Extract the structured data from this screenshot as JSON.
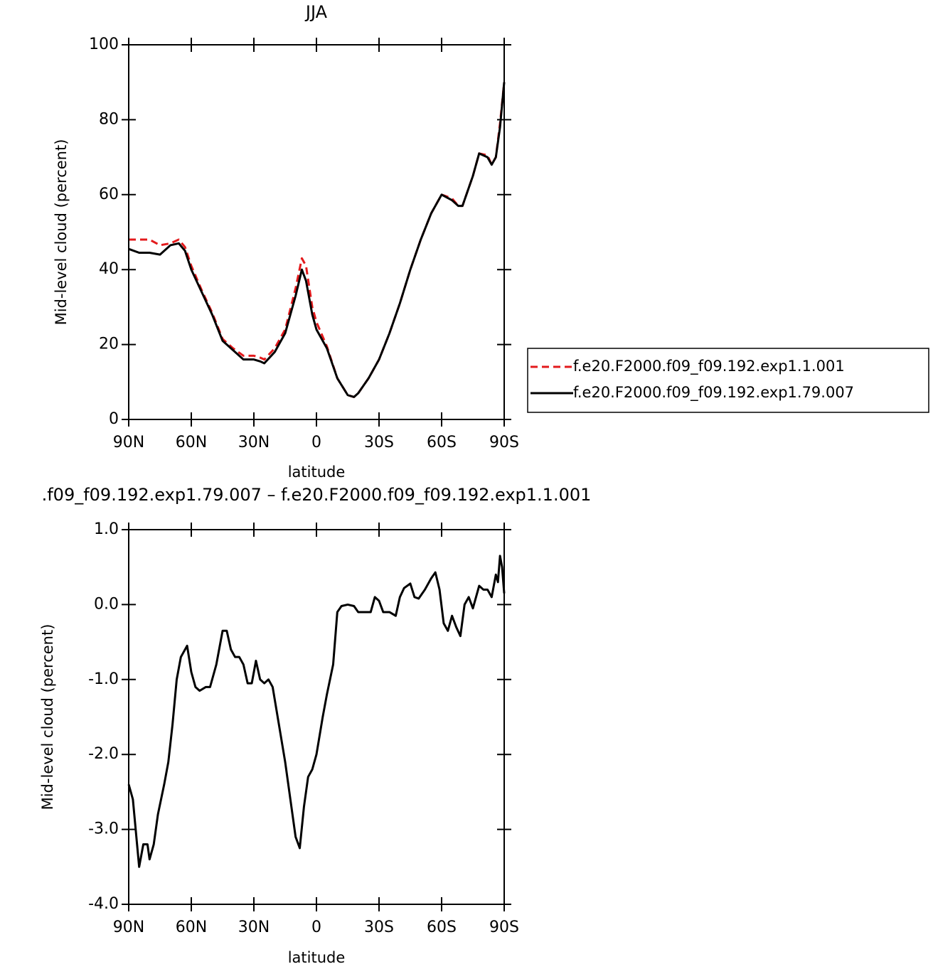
{
  "chart_data": [
    {
      "type": "line",
      "title": "JJA",
      "x_label": "latitude",
      "y_label": "Mid-level cloud (percent)",
      "x": [
        90,
        85,
        80,
        75,
        70,
        66,
        63,
        60,
        55,
        50,
        45,
        40,
        35,
        30,
        27,
        25,
        20,
        15,
        10,
        7,
        5,
        2,
        0,
        -5,
        -10,
        -15,
        -18,
        -20,
        -25,
        -30,
        -35,
        -40,
        -45,
        -50,
        -55,
        -60,
        -65,
        -68,
        -70,
        -75,
        -78,
        -82,
        -84,
        -86,
        -88,
        -90
      ],
      "series": [
        {
          "name": "f.e20.F2000.f09_f09.192.exp1.1.001",
          "color": "#e31a1c",
          "line_style": "dashed",
          "values": [
            48,
            48,
            48,
            46.5,
            47,
            48,
            46,
            41,
            34.5,
            28.5,
            21.5,
            19,
            17,
            17,
            16.5,
            16,
            19,
            24,
            35,
            43,
            41,
            30,
            26,
            19.5,
            11,
            6.5,
            6,
            7,
            11,
            16,
            23,
            31,
            40,
            48,
            55,
            60,
            59,
            57,
            57,
            65,
            71,
            70.5,
            68,
            70,
            79,
            90
          ]
        },
        {
          "name": "f.e20.F2000.f09_f09.192.exp1.79.007",
          "color": "#000000",
          "line_style": "solid",
          "values": [
            45.5,
            44.5,
            44.5,
            44,
            46.5,
            47,
            45,
            40,
            34,
            28,
            21,
            18.5,
            16,
            16,
            15.5,
            15,
            18,
            23,
            33,
            40,
            37,
            28,
            24,
            19,
            11,
            6.5,
            6,
            7,
            11,
            16,
            23,
            31,
            40,
            48,
            55,
            60,
            58.5,
            57,
            57,
            65,
            71,
            70,
            68,
            70,
            78,
            90
          ]
        }
      ],
      "xlim": [
        90,
        -90
      ],
      "xticks": [
        {
          "value": 90,
          "label": "90N"
        },
        {
          "value": 60,
          "label": "60N"
        },
        {
          "value": 30,
          "label": "30N"
        },
        0,
        {
          "value": -30,
          "label": "30S"
        },
        {
          "value": -60,
          "label": "60S"
        },
        {
          "value": -90,
          "label": "90S"
        }
      ],
      "ylim": [
        0,
        100
      ],
      "yticks": [
        0,
        20,
        40,
        60,
        80,
        100
      ],
      "legend": "right"
    },
    {
      "type": "line",
      "title": ".f09_f09.192.exp1.79.007 – f.e20.F2000.f09_f09.192.exp1.1.001",
      "x_label": "latitude",
      "y_label": "Mid-level cloud (percent)",
      "x": [
        90,
        88,
        86,
        85,
        83,
        81,
        80,
        78,
        76,
        73,
        71,
        69,
        67,
        65,
        62,
        60,
        58,
        56,
        53,
        51,
        48,
        45,
        43,
        41,
        39,
        37,
        35,
        33,
        31,
        29,
        27,
        25,
        23,
        21,
        18,
        15,
        12,
        10,
        8,
        6,
        4,
        2,
        0,
        -3,
        -5,
        -8,
        -10,
        -12,
        -15,
        -18,
        -20,
        -23,
        -26,
        -28,
        -30,
        -32,
        -35,
        -38,
        -40,
        -42,
        -45,
        -47,
        -49,
        -52,
        -55,
        -57,
        -59,
        -61,
        -63,
        -65,
        -67,
        -69,
        -71,
        -73,
        -75,
        -78,
        -80,
        -82,
        -84,
        -86,
        -87,
        -88,
        -89,
        -90
      ],
      "color": "#000000",
      "values": [
        -2.4,
        -2.6,
        -3.2,
        -3.5,
        -3.2,
        -3.2,
        -3.4,
        -3.2,
        -2.8,
        -2.4,
        -2.1,
        -1.6,
        -1.0,
        -0.7,
        -0.55,
        -0.9,
        -1.1,
        -1.15,
        -1.1,
        -1.1,
        -0.8,
        -0.35,
        -0.35,
        -0.6,
        -0.7,
        -0.7,
        -0.8,
        -1.05,
        -1.05,
        -0.75,
        -1.0,
        -1.05,
        -1.0,
        -1.1,
        -1.6,
        -2.1,
        -2.7,
        -3.1,
        -3.25,
        -2.7,
        -2.3,
        -2.2,
        -2.0,
        -1.5,
        -1.2,
        -0.8,
        -0.1,
        -0.02,
        0.0,
        -0.02,
        -0.1,
        -0.1,
        -0.1,
        0.1,
        0.05,
        -0.1,
        -0.1,
        -0.15,
        0.1,
        0.22,
        0.28,
        0.1,
        0.08,
        0.2,
        0.35,
        0.43,
        0.2,
        -0.25,
        -0.35,
        -0.15,
        -0.3,
        -0.42,
        0.0,
        0.1,
        -0.05,
        0.25,
        0.2,
        0.2,
        0.1,
        0.4,
        0.3,
        0.65,
        0.5,
        0.15
      ],
      "xlim": [
        90,
        -90
      ],
      "xticks": [
        {
          "value": 90,
          "label": "90N"
        },
        {
          "value": 60,
          "label": "60N"
        },
        {
          "value": 30,
          "label": "30N"
        },
        0,
        {
          "value": -30,
          "label": "30S"
        },
        {
          "value": -60,
          "label": "60S"
        },
        {
          "value": -90,
          "label": "90S"
        }
      ],
      "ylim": [
        -4,
        1
      ],
      "yticks": [
        {
          "value": 1,
          "label": "1.0"
        },
        {
          "value": 0,
          "label": "0.0"
        },
        {
          "value": -1,
          "label": "-1.0"
        },
        {
          "value": -2,
          "label": "-2.0"
        },
        {
          "value": -3,
          "label": "-3.0"
        },
        {
          "value": -4,
          "label": "-4.0"
        }
      ]
    }
  ]
}
